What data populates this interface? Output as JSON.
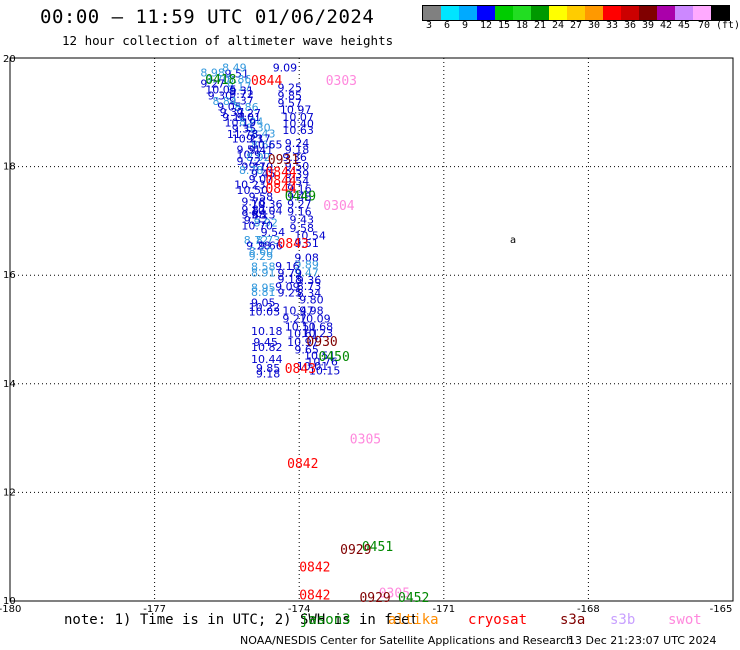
{
  "header": {
    "title": "00:00 — 11:59 UTC 01/06/2024",
    "subtitle": "12 hour collection of altimeter wave heights"
  },
  "color_scale": {
    "colors": [
      "#808080",
      "#00e5ff",
      "#00aaff",
      "#0000ff",
      "#00cc00",
      "#22dd22",
      "#009900",
      "#ffff00",
      "#ffcc00",
      "#ff9900",
      "#ff0000",
      "#cc0000",
      "#800000",
      "#aa00aa",
      "#cc88ff",
      "#ffaaff",
      "#000000"
    ],
    "labels": [
      "3",
      "6",
      "9",
      "12",
      "15",
      "18",
      "21",
      "24",
      "27",
      "30",
      "33",
      "36",
      "39",
      "42",
      "45",
      "70",
      "(ft)"
    ]
  },
  "axes": {
    "x_ticks": [
      "-180",
      "-177",
      "-174",
      "-171",
      "-168",
      "-165"
    ],
    "y_ticks": [
      "20",
      "18",
      "16",
      "14",
      "12",
      "10"
    ]
  },
  "satellites": [
    {
      "name": "jason3",
      "color": "#008800"
    },
    {
      "name": "altika",
      "color": "#ff8c00"
    },
    {
      "name": "cryosat",
      "color": "#ff0000"
    },
    {
      "name": "s3a",
      "color": "#800000"
    },
    {
      "name": "s3b",
      "color": "#c8a0ff"
    },
    {
      "name": "swot",
      "color": "#ff88dd"
    }
  ],
  "note": {
    "text": "note: 1) Time is in UTC; 2) SWH is in feet"
  },
  "footer": {
    "credit": "NOAA/NESDIS Center for Satellite Applications and Research",
    "date": "13 Dec 21:23:07 UTC 2024"
  },
  "map_data": {
    "lon_range": [
      -180,
      -165
    ],
    "lat_range": [
      10,
      20
    ],
    "land_marker": "a",
    "time_labels": [
      {
        "t": "0303",
        "lon": -173.45,
        "lat": 19.5,
        "c": "#ff88dd"
      },
      {
        "t": "0418",
        "lon": -175.95,
        "lat": 19.52,
        "c": "#008800"
      },
      {
        "t": "0844",
        "lon": -175.0,
        "lat": 19.5,
        "c": "#ff0000"
      },
      {
        "t": "0931",
        "lon": -174.65,
        "lat": 18.05,
        "c": "#800000"
      },
      {
        "t": "0844",
        "lon": -174.7,
        "lat": 17.82,
        "c": "#ff0000"
      },
      {
        "t": "0844",
        "lon": -174.7,
        "lat": 17.66,
        "c": "#ff0000"
      },
      {
        "t": "0844",
        "lon": -174.7,
        "lat": 17.51,
        "c": "#ff0000"
      },
      {
        "t": "0449",
        "lon": -174.3,
        "lat": 17.38,
        "c": "#008800"
      },
      {
        "t": "0304",
        "lon": -173.5,
        "lat": 17.2,
        "c": "#ff88dd"
      },
      {
        "t": "0843",
        "lon": -174.45,
        "lat": 16.5,
        "c": "#ff0000"
      },
      {
        "t": "0930",
        "lon": -173.85,
        "lat": 14.7,
        "c": "#800000"
      },
      {
        "t": "0450",
        "lon": -173.6,
        "lat": 14.42,
        "c": "#008800"
      },
      {
        "t": "0843",
        "lon": -174.3,
        "lat": 14.2,
        "c": "#ff0000"
      },
      {
        "t": "0305",
        "lon": -172.95,
        "lat": 12.9,
        "c": "#ff88dd"
      },
      {
        "t": "0842",
        "lon": -174.25,
        "lat": 12.45,
        "c": "#ff0000"
      },
      {
        "t": "0451",
        "lon": -172.7,
        "lat": 10.92,
        "c": "#008800"
      },
      {
        "t": "0929",
        "lon": -173.15,
        "lat": 10.87,
        "c": "#800000"
      },
      {
        "t": "0842",
        "lon": -174.0,
        "lat": 10.54,
        "c": "#ff0000"
      },
      {
        "t": "0842",
        "lon": -174.0,
        "lat": 10.03,
        "c": "#ff0000"
      },
      {
        "t": "0305",
        "lon": -172.35,
        "lat": 10.06,
        "c": "#ff88dd"
      },
      {
        "t": "0929",
        "lon": -172.75,
        "lat": 9.98,
        "c": "#800000"
      },
      {
        "t": "0452",
        "lon": -171.95,
        "lat": 9.98,
        "c": "#008800"
      }
    ],
    "wave_heights": [
      {
        "v": "9.09",
        "lon": -174.55,
        "lat": 19.75,
        "c": "#0000cc"
      },
      {
        "v": "8.98",
        "lon": -176.05,
        "lat": 19.66,
        "c": "#3399dd"
      },
      {
        "v": "9.51",
        "lon": -175.55,
        "lat": 19.64,
        "c": "#0000cc"
      },
      {
        "v": "8.49",
        "lon": -175.6,
        "lat": 19.75,
        "c": "#3399dd"
      },
      {
        "v": "9.70",
        "lon": -175.95,
        "lat": 19.54,
        "c": "#3399dd"
      },
      {
        "v": "8.86",
        "lon": -175.5,
        "lat": 19.54,
        "c": "#3399dd"
      },
      {
        "v": "9.27",
        "lon": -176.05,
        "lat": 19.46,
        "c": "#0000cc"
      },
      {
        "v": "9.25",
        "lon": -174.45,
        "lat": 19.38,
        "c": "#0000cc"
      },
      {
        "v": "8.17",
        "lon": -175.5,
        "lat": 19.4,
        "c": "#3399dd"
      },
      {
        "v": "10.05",
        "lon": -175.95,
        "lat": 19.35,
        "c": "#0000cc"
      },
      {
        "v": "9.31",
        "lon": -175.45,
        "lat": 19.33,
        "c": "#0000cc"
      },
      {
        "v": "9.72",
        "lon": -175.45,
        "lat": 19.26,
        "c": "#0000cc"
      },
      {
        "v": "9.85",
        "lon": -174.45,
        "lat": 19.24,
        "c": "#0000cc"
      },
      {
        "v": "9.30",
        "lon": -175.9,
        "lat": 19.24,
        "c": "#0000cc"
      },
      {
        "v": "9.37",
        "lon": -175.45,
        "lat": 19.14,
        "c": "#0000cc"
      },
      {
        "v": "8.84",
        "lon": -175.8,
        "lat": 19.13,
        "c": "#3399dd"
      },
      {
        "v": "9.57",
        "lon": -174.45,
        "lat": 19.1,
        "c": "#0000cc"
      },
      {
        "v": "9.05",
        "lon": -175.7,
        "lat": 19.03,
        "c": "#0000cc"
      },
      {
        "v": "8.86",
        "lon": -175.35,
        "lat": 19.02,
        "c": "#3399dd"
      },
      {
        "v": "10.97",
        "lon": -174.4,
        "lat": 18.98,
        "c": "#0000cc"
      },
      {
        "v": "9.37",
        "lon": -175.65,
        "lat": 18.93,
        "c": "#0000cc"
      },
      {
        "v": "9.27",
        "lon": -175.3,
        "lat": 18.91,
        "c": "#0000cc"
      },
      {
        "v": "10.07",
        "lon": -174.35,
        "lat": 18.84,
        "c": "#0000cc"
      },
      {
        "v": "9.11",
        "lon": -175.6,
        "lat": 18.84,
        "c": "#0000cc"
      },
      {
        "v": "9.01",
        "lon": -175.3,
        "lat": 18.84,
        "c": "#0000cc"
      },
      {
        "v": "8.94",
        "lon": -175.25,
        "lat": 18.76,
        "c": "#3399dd"
      },
      {
        "v": "10.19",
        "lon": -175.55,
        "lat": 18.74,
        "c": "#0000cc"
      },
      {
        "v": "10.40",
        "lon": -174.35,
        "lat": 18.72,
        "c": "#0000cc"
      },
      {
        "v": "8.30",
        "lon": -175.1,
        "lat": 18.65,
        "c": "#3399dd"
      },
      {
        "v": "9.35",
        "lon": -175.4,
        "lat": 18.63,
        "c": "#0000cc"
      },
      {
        "v": "10.63",
        "lon": -174.35,
        "lat": 18.6,
        "c": "#0000cc"
      },
      {
        "v": "8.43",
        "lon": -175.0,
        "lat": 18.54,
        "c": "#3399dd"
      },
      {
        "v": "11.78",
        "lon": -175.5,
        "lat": 18.53,
        "c": "#0000cc"
      },
      {
        "v": "10.23",
        "lon": -175.4,
        "lat": 18.44,
        "c": "#0000cc"
      },
      {
        "v": "9.17",
        "lon": -175.1,
        "lat": 18.44,
        "c": "#0000cc"
      },
      {
        "v": "9.24",
        "lon": -174.3,
        "lat": 18.36,
        "c": "#0000cc"
      },
      {
        "v": "8.65",
        "lon": -175.0,
        "lat": 18.33,
        "c": "#3399dd"
      },
      {
        "v": "10.65",
        "lon": -175.0,
        "lat": 18.33,
        "c": "#0000cc"
      },
      {
        "v": "9.51",
        "lon": -175.3,
        "lat": 18.24,
        "c": "#0000cc"
      },
      {
        "v": "9.18",
        "lon": -174.3,
        "lat": 18.24,
        "c": "#0000cc"
      },
      {
        "v": "9.41",
        "lon": -175.05,
        "lat": 18.23,
        "c": "#0000cc"
      },
      {
        "v": "10.91",
        "lon": -175.3,
        "lat": 18.15,
        "c": "#0000cc"
      },
      {
        "v": "8.92",
        "lon": -175.1,
        "lat": 18.1,
        "c": "#3399dd"
      },
      {
        "v": "9.36",
        "lon": -174.35,
        "lat": 18.1,
        "c": "#0000cc"
      },
      {
        "v": "9.72",
        "lon": -175.3,
        "lat": 18.03,
        "c": "#0000cc"
      },
      {
        "v": "9.37",
        "lon": -175.2,
        "lat": 17.93,
        "c": "#0000cc"
      },
      {
        "v": "9.10",
        "lon": -175.05,
        "lat": 17.93,
        "c": "#0000cc"
      },
      {
        "v": "9.50",
        "lon": -174.3,
        "lat": 17.94,
        "c": "#0000cc"
      },
      {
        "v": "8.78",
        "lon": -175.25,
        "lat": 17.86,
        "c": "#3399dd"
      },
      {
        "v": "9.45",
        "lon": -175.0,
        "lat": 17.8,
        "c": "#0000cc"
      },
      {
        "v": "9.39",
        "lon": -174.3,
        "lat": 17.79,
        "c": "#0000cc"
      },
      {
        "v": "9.07",
        "lon": -175.05,
        "lat": 17.7,
        "c": "#0000cc"
      },
      {
        "v": "9.54",
        "lon": -174.3,
        "lat": 17.66,
        "c": "#0000cc"
      },
      {
        "v": "10.23",
        "lon": -175.35,
        "lat": 17.6,
        "c": "#0000cc"
      },
      {
        "v": "9.16",
        "lon": -174.25,
        "lat": 17.52,
        "c": "#0000cc"
      },
      {
        "v": "10.50",
        "lon": -175.3,
        "lat": 17.5,
        "c": "#0000cc"
      },
      {
        "v": "9.48",
        "lon": -174.25,
        "lat": 17.38,
        "c": "#0000cc"
      },
      {
        "v": "9.58",
        "lon": -175.05,
        "lat": 17.38,
        "c": "#0000cc"
      },
      {
        "v": "9.78",
        "lon": -175.2,
        "lat": 17.28,
        "c": "#0000cc"
      },
      {
        "v": "9.27",
        "lon": -174.25,
        "lat": 17.24,
        "c": "#0000cc"
      },
      {
        "v": "10.36",
        "lon": -175.0,
        "lat": 17.24,
        "c": "#0000cc"
      },
      {
        "v": "9.87",
        "lon": -175.2,
        "lat": 17.14,
        "c": "#0000cc"
      },
      {
        "v": "9.16",
        "lon": -174.25,
        "lat": 17.1,
        "c": "#0000cc"
      },
      {
        "v": "10.04",
        "lon": -175.0,
        "lat": 17.12,
        "c": "#0000cc"
      },
      {
        "v": "9.88",
        "lon": -175.2,
        "lat": 17.04,
        "c": "#0000cc"
      },
      {
        "v": "9.13",
        "lon": -175.0,
        "lat": 17.04,
        "c": "#0000cc"
      },
      {
        "v": "9.43",
        "lon": -174.2,
        "lat": 16.95,
        "c": "#0000cc"
      },
      {
        "v": "9.52",
        "lon": -175.15,
        "lat": 16.94,
        "c": "#0000cc"
      },
      {
        "v": "8.92",
        "lon": -174.95,
        "lat": 16.9,
        "c": "#3399dd"
      },
      {
        "v": "10.70",
        "lon": -175.2,
        "lat": 16.84,
        "c": "#0000cc"
      },
      {
        "v": "9.54",
        "lon": -174.8,
        "lat": 16.72,
        "c": "#0000cc"
      },
      {
        "v": "9.58",
        "lon": -174.2,
        "lat": 16.8,
        "c": "#0000cc"
      },
      {
        "v": "10.54",
        "lon": -174.1,
        "lat": 16.66,
        "c": "#0000cc"
      },
      {
        "v": "8.72",
        "lon": -175.15,
        "lat": 16.57,
        "c": "#3399dd"
      },
      {
        "v": "8.73",
        "lon": -174.9,
        "lat": 16.57,
        "c": "#3399dd"
      },
      {
        "v": "9.51",
        "lon": -174.1,
        "lat": 16.52,
        "c": "#0000cc"
      },
      {
        "v": "9.28",
        "lon": -175.1,
        "lat": 16.47,
        "c": "#0000cc"
      },
      {
        "v": "9.66",
        "lon": -174.85,
        "lat": 16.47,
        "c": "#0000cc"
      },
      {
        "v": "8.60",
        "lon": -175.05,
        "lat": 16.37,
        "c": "#3399dd"
      },
      {
        "v": "9.29",
        "lon": -175.05,
        "lat": 16.28,
        "c": "#3399dd"
      },
      {
        "v": "9.08",
        "lon": -174.1,
        "lat": 16.25,
        "c": "#0000cc"
      },
      {
        "v": "9.89",
        "lon": -174.1,
        "lat": 16.12,
        "c": "#3399dd"
      },
      {
        "v": "8.58",
        "lon": -175.0,
        "lat": 16.09,
        "c": "#3399dd"
      },
      {
        "v": "9.16",
        "lon": -174.5,
        "lat": 16.1,
        "c": "#0000cc"
      },
      {
        "v": "9.47",
        "lon": -174.1,
        "lat": 15.98,
        "c": "#3399dd"
      },
      {
        "v": "8.91",
        "lon": -175.0,
        "lat": 15.98,
        "c": "#3399dd"
      },
      {
        "v": "9.79",
        "lon": -174.45,
        "lat": 15.97,
        "c": "#0000cc"
      },
      {
        "v": "9.36",
        "lon": -174.05,
        "lat": 15.84,
        "c": "#0000cc"
      },
      {
        "v": "9.18",
        "lon": -174.45,
        "lat": 15.86,
        "c": "#0000cc"
      },
      {
        "v": "8.73",
        "lon": -174.05,
        "lat": 15.73,
        "c": "#0000cc"
      },
      {
        "v": "8.95",
        "lon": -175.0,
        "lat": 15.7,
        "c": "#3399dd"
      },
      {
        "v": "9.09",
        "lon": -174.5,
        "lat": 15.72,
        "c": "#0000cc"
      },
      {
        "v": "8.81",
        "lon": -175.0,
        "lat": 15.62,
        "c": "#3399dd"
      },
      {
        "v": "8.34",
        "lon": -174.05,
        "lat": 15.6,
        "c": "#0000cc"
      },
      {
        "v": "9.25",
        "lon": -174.45,
        "lat": 15.61,
        "c": "#0000cc"
      },
      {
        "v": "9.80",
        "lon": -174.0,
        "lat": 15.48,
        "c": "#0000cc"
      },
      {
        "v": "9.05",
        "lon": -175.0,
        "lat": 15.42,
        "c": "#0000cc"
      },
      {
        "v": "10.22",
        "lon": -175.05,
        "lat": 15.34,
        "c": "#0000cc"
      },
      {
        "v": "10.03",
        "lon": -175.05,
        "lat": 15.26,
        "c": "#0000cc"
      },
      {
        "v": "10.47",
        "lon": -174.35,
        "lat": 15.28,
        "c": "#0000cc"
      },
      {
        "v": "9.98",
        "lon": -174.0,
        "lat": 15.28,
        "c": "#0000cc"
      },
      {
        "v": "9.27",
        "lon": -174.35,
        "lat": 15.13,
        "c": "#0000cc"
      },
      {
        "v": "10.09",
        "lon": -174.0,
        "lat": 15.13,
        "c": "#0000cc"
      },
      {
        "v": "10.51",
        "lon": -174.3,
        "lat": 14.98,
        "c": "#0000cc"
      },
      {
        "v": "10.68",
        "lon": -173.95,
        "lat": 14.98,
        "c": "#0000cc"
      },
      {
        "v": "10.18",
        "lon": -175.0,
        "lat": 14.9,
        "c": "#0000cc"
      },
      {
        "v": "10.61",
        "lon": -174.25,
        "lat": 14.85,
        "c": "#0000cc"
      },
      {
        "v": "10.23",
        "lon": -173.95,
        "lat": 14.86,
        "c": "#0000cc"
      },
      {
        "v": "9.45",
        "lon": -174.95,
        "lat": 14.7,
        "c": "#0000cc"
      },
      {
        "v": "10.97",
        "lon": -174.25,
        "lat": 14.7,
        "c": "#0000cc"
      },
      {
        "v": "10.82",
        "lon": -175.0,
        "lat": 14.6,
        "c": "#0000cc"
      },
      {
        "v": "9.65",
        "lon": -174.1,
        "lat": 14.56,
        "c": "#0000cc"
      },
      {
        "v": "10.51",
        "lon": -173.9,
        "lat": 14.45,
        "c": "#0000cc"
      },
      {
        "v": "10.44",
        "lon": -175.0,
        "lat": 14.38,
        "c": "#0000cc"
      },
      {
        "v": "10.76",
        "lon": -173.85,
        "lat": 14.34,
        "c": "#0000cc"
      },
      {
        "v": "10.01",
        "lon": -174.05,
        "lat": 14.25,
        "c": "#0000cc"
      },
      {
        "v": "9.85",
        "lon": -174.9,
        "lat": 14.22,
        "c": "#0000cc"
      },
      {
        "v": "10.15",
        "lon": -173.8,
        "lat": 14.17,
        "c": "#0000cc"
      },
      {
        "v": "9.18",
        "lon": -174.9,
        "lat": 14.12,
        "c": "#0000cc"
      }
    ]
  }
}
